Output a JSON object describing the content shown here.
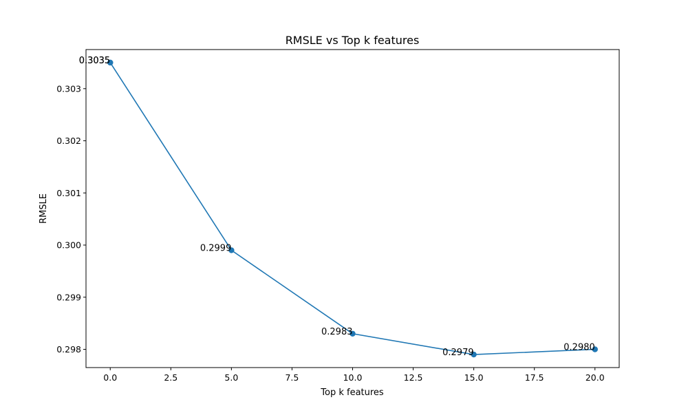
{
  "chart_data": {
    "type": "line",
    "title": "RMSLE vs Top k features",
    "xlabel": "Top k features",
    "ylabel": "RMSLE",
    "x": [
      0,
      0,
      5,
      10,
      15,
      20
    ],
    "series": [
      {
        "values": [
          0.3035,
          0.3035,
          0.2999,
          0.2983,
          0.2979,
          0.298
        ],
        "color": "#1f77b4",
        "marker": "circle"
      }
    ],
    "data_labels": [
      "0.3035",
      "0.3035",
      "0.2999",
      "0.2983",
      "0.2979",
      "0.2980"
    ],
    "xlim": [
      -1,
      21
    ],
    "ylim": [
      0.29765,
      0.30375
    ],
    "x_ticks": [
      0.0,
      2.5,
      5.0,
      7.5,
      10.0,
      12.5,
      15.0,
      17.5,
      20.0
    ],
    "x_tick_labels": [
      "0.0",
      "2.5",
      "5.0",
      "7.5",
      "10.0",
      "12.5",
      "15.0",
      "17.5",
      "20.0"
    ],
    "y_ticks": [
      0.298,
      0.299,
      0.3,
      0.301,
      0.302,
      0.303
    ],
    "y_tick_labels": [
      "0.298",
      "0.299",
      "0.300",
      "0.301",
      "0.302",
      "0.303"
    ],
    "grid": false,
    "legend": "none"
  }
}
